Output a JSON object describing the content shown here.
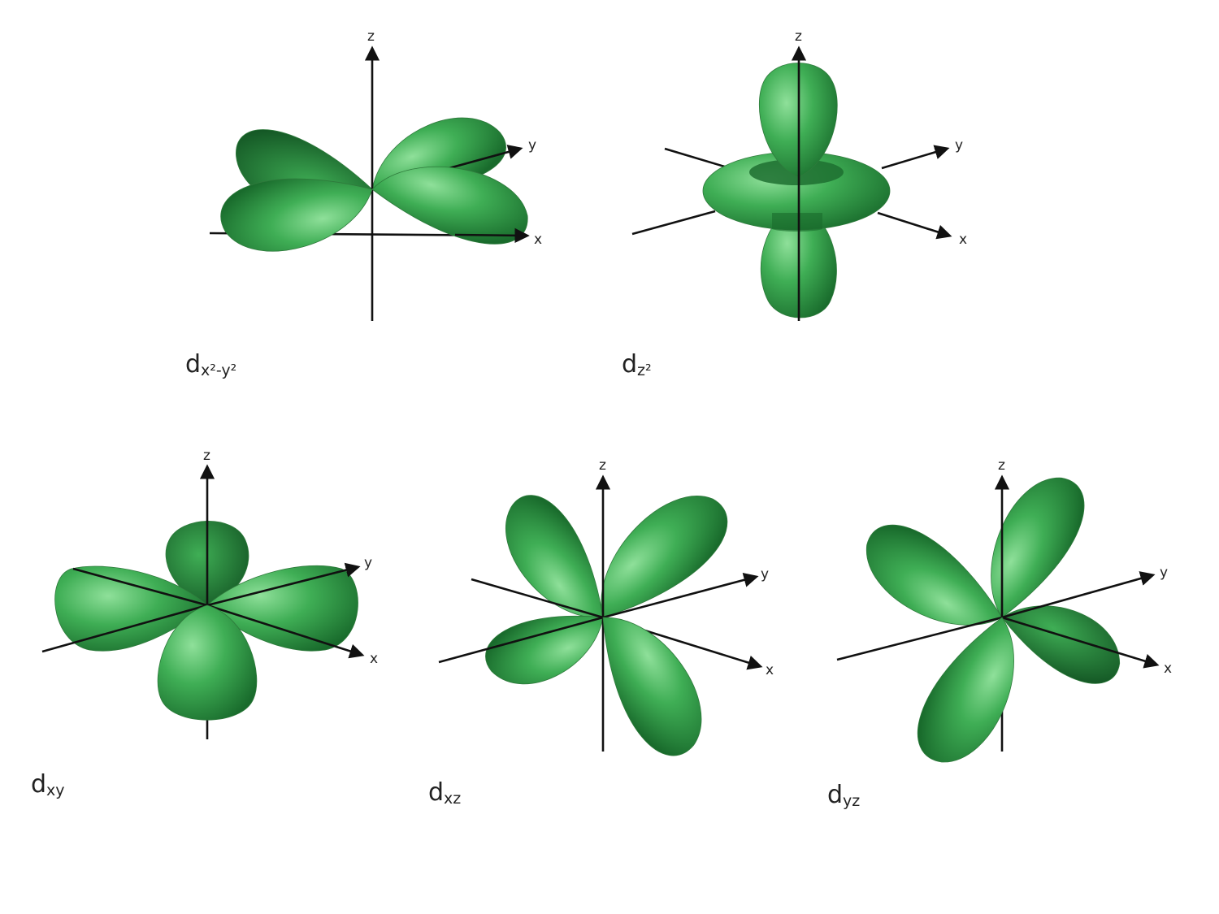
{
  "colors": {
    "lobe_light": "#8fe09a",
    "lobe_mid": "#3fae55",
    "lobe_dark": "#196b2c",
    "lobe_deep": "#0f4d1f",
    "axis": "#111111"
  },
  "axis_labels": {
    "x": "x",
    "y": "y",
    "z": "z"
  },
  "orbitals": [
    {
      "id": "dx2-y2",
      "label_main": "d",
      "label_sub": "x²-y²"
    },
    {
      "id": "dz2",
      "label_main": "d",
      "label_sub": "z²"
    },
    {
      "id": "dxy",
      "label_main": "d",
      "label_sub": "xy"
    },
    {
      "id": "dxz",
      "label_main": "d",
      "label_sub": "xz"
    },
    {
      "id": "dyz",
      "label_main": "d",
      "label_sub": "yz"
    }
  ]
}
